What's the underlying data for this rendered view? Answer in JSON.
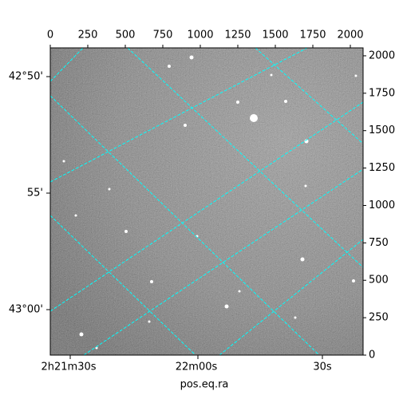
{
  "chart_data": {
    "type": "image",
    "xlabel": "pos.eq.ra",
    "xlim": [
      0,
      2085
    ],
    "xticks": [
      0,
      250,
      500,
      750,
      1000,
      1250,
      1500,
      1750,
      2000
    ],
    "ylim": [
      0,
      2053
    ],
    "yticks": [
      0,
      250,
      500,
      750,
      1000,
      1250,
      1500,
      1750,
      2000
    ],
    "ra_labels": [
      "2h21m30s",
      "22m00s",
      "30s"
    ],
    "dec_labels": [
      "42°50'",
      "55'",
      "43°00'"
    ],
    "grid_color": "#00ffff"
  }
}
